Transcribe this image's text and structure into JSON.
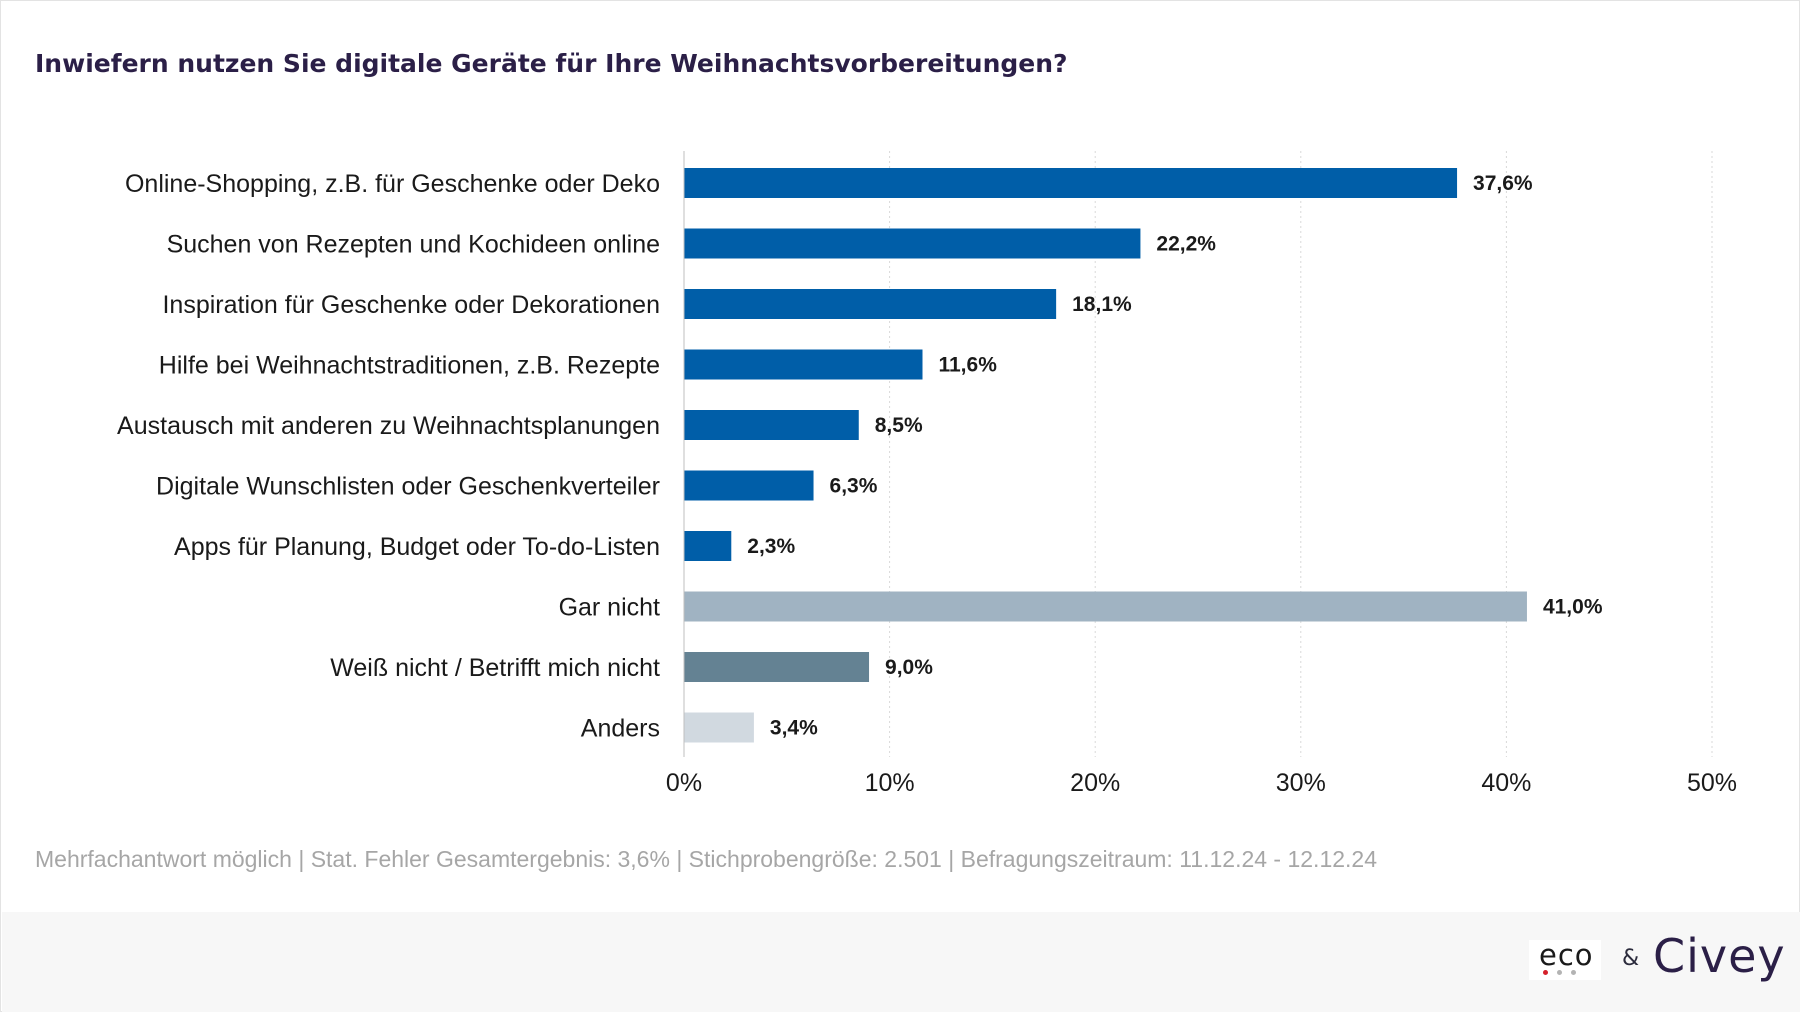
{
  "title": "Inwiefern nutzen Sie digitale Geräte für Ihre Weihnachtsvorbereitungen?",
  "footnote": "Mehrfachantwort möglich | Stat. Fehler Gesamtergebnis: 3,6% | Stichprobengröße: 2.501 | Befragungszeitraum: 11.12.24 - 12.12.24",
  "logos": {
    "eco": "eco",
    "ampersand": "&",
    "civey": "Civey"
  },
  "colors": {
    "primary": "#005ea8",
    "gar_nicht": "#a0b3c2",
    "weiss_nicht": "#648293",
    "anders": "#d1d9e0",
    "grid": "#d9d9d9",
    "title": "#2b1f47"
  },
  "chart_data": {
    "type": "bar",
    "orientation": "horizontal",
    "categories": [
      "Online-Shopping, z.B. für Geschenke oder Deko",
      "Suchen von Rezepten und Kochideen online",
      "Inspiration für Geschenke oder Dekorationen",
      "Hilfe bei Weihnachtstraditionen, z.B. Rezepte",
      "Austausch mit anderen zu Weihnachtsplanungen",
      "Digitale Wunschlisten oder Geschenkverteiler",
      "Apps für Planung, Budget oder To-do-Listen",
      "Gar nicht",
      "Weiß nicht / Betrifft mich nicht",
      "Anders"
    ],
    "values": [
      37.6,
      22.2,
      18.1,
      11.6,
      8.5,
      6.3,
      2.3,
      41.0,
      9.0,
      3.4
    ],
    "value_labels": [
      "37,6%",
      "22,2%",
      "18,1%",
      "11,6%",
      "8,5%",
      "6,3%",
      "2,3%",
      "41,0%",
      "9,0%",
      "3,4%"
    ],
    "bar_colors": [
      "#005ea8",
      "#005ea8",
      "#005ea8",
      "#005ea8",
      "#005ea8",
      "#005ea8",
      "#005ea8",
      "#a0b3c2",
      "#648293",
      "#d1d9e0"
    ],
    "xlim": [
      0,
      50
    ],
    "xticks": [
      0,
      10,
      20,
      30,
      40,
      50
    ],
    "xtick_labels": [
      "0%",
      "10%",
      "20%",
      "30%",
      "40%",
      "50%"
    ],
    "grid": "vertical dotted"
  }
}
